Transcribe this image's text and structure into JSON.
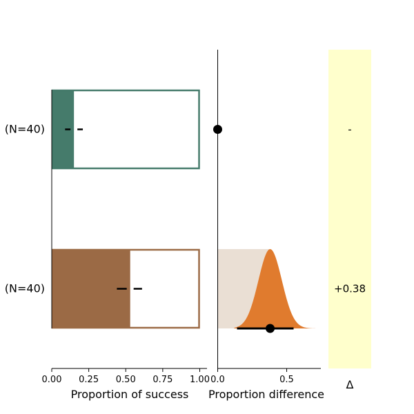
{
  "chart_data": [
    {
      "type": "bar",
      "orientation": "horizontal",
      "categories": [
        "(N=40)",
        "(N=40)"
      ],
      "series": [
        {
          "values": [
            0.15,
            0.53
          ],
          "colors": [
            "#457b6b",
            "#9b6a45"
          ]
        }
      ],
      "outline_values": [
        1.0,
        1.0
      ],
      "errorbars": [
        {
          "center": 0.15,
          "low": 0.09,
          "high": 0.21
        },
        {
          "center": 0.53,
          "low": 0.44,
          "high": 0.61
        }
      ],
      "xlabel": "Proportion of success",
      "xlim": [
        0,
        1.05
      ],
      "xticks": [
        0.0,
        0.25,
        0.5,
        0.75,
        1.0
      ],
      "xtick_labels": [
        "0.00",
        "0.25",
        "0.50",
        "0.75",
        "1.00"
      ]
    },
    {
      "type": "scatter",
      "x": [
        0.0,
        0.38
      ],
      "y_categories": [
        "(N=40)",
        "(N=40)"
      ],
      "ci": [
        null,
        [
          0.14,
          0.55
        ]
      ],
      "bootstrap_distribution": {
        "category_index": 1,
        "mean": 0.38,
        "sd": 0.085,
        "range": [
          0.12,
          0.72
        ],
        "fill_color": "#e07b2e",
        "shade_color": "#eadfd4"
      },
      "xlabel": "Proportion difference",
      "xlim": [
        0.0,
        0.74
      ],
      "xticks": [
        0.0,
        0.5
      ],
      "xtick_labels": [
        "0.0",
        "0.5"
      ]
    },
    {
      "type": "table",
      "column_label": "Δ",
      "values": [
        "-",
        "+0.38"
      ],
      "background": "#ffffcc"
    }
  ]
}
